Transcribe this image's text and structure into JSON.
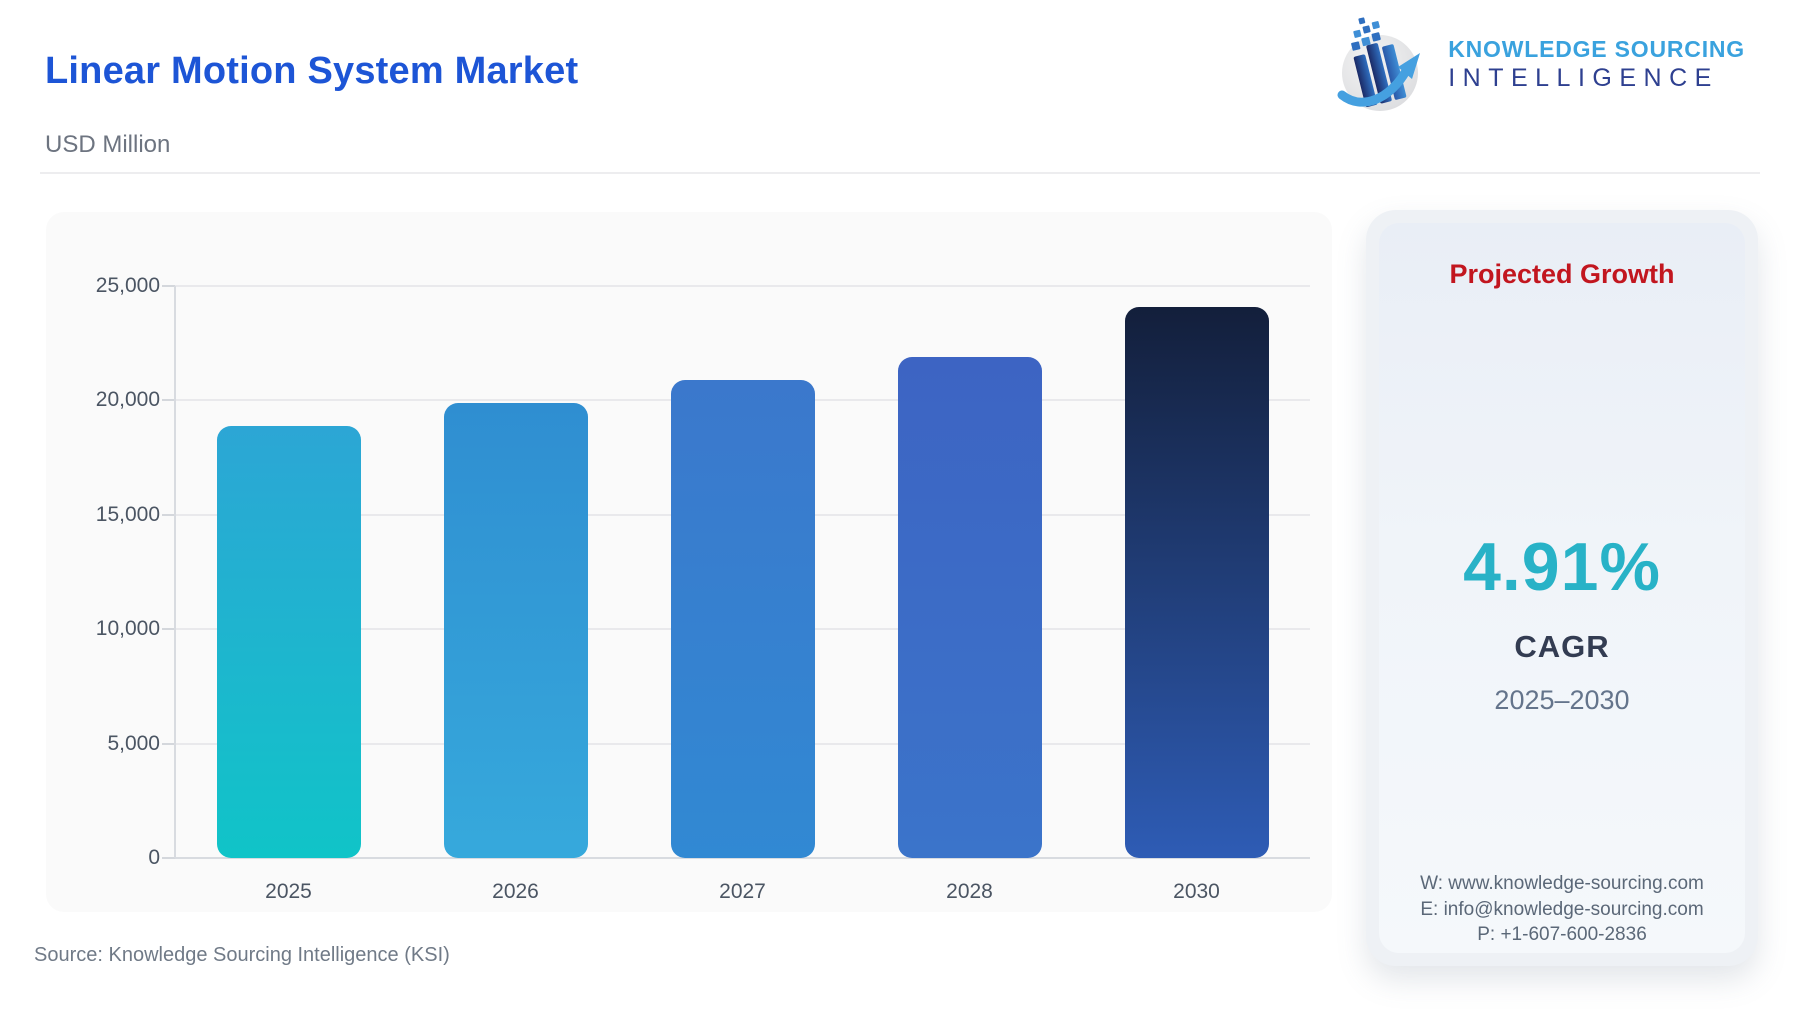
{
  "header": {
    "title": "Linear Motion System Market",
    "subtitle": "USD Million",
    "logo": {
      "line1": "KNOWLEDGE SOURCING",
      "line2": "INTELLIGENCE",
      "icon": "ksi-globe-bars-arrow-icon"
    }
  },
  "chart_data": {
    "type": "bar",
    "title": "Linear Motion System Market",
    "unit_label": "USD Million",
    "categories": [
      "2025",
      "2026",
      "2027",
      "2028",
      "2030"
    ],
    "values": [
      18900,
      19900,
      20900,
      21900,
      24100
    ],
    "ylim": [
      0,
      25000
    ],
    "ytick_values": [
      0,
      5000,
      10000,
      15000,
      20000,
      25000
    ],
    "ytick_labels": [
      "0",
      "5,000",
      "10,000",
      "15,000",
      "20,000",
      "25,000"
    ],
    "grid": true,
    "legend": false,
    "bar_gradients": [
      [
        "#2CA6D5",
        "#10C4C8"
      ],
      [
        "#2F8ED1",
        "#36A9DC"
      ],
      [
        "#3B78CC",
        "#3189D3"
      ],
      [
        "#3D64C3",
        "#3B74CA"
      ],
      [
        "#131F3B",
        "#2E5CB5"
      ]
    ]
  },
  "growth_panel": {
    "heading": "Projected Growth",
    "cagr_value": "4.91%",
    "cagr_label": "CAGR",
    "period": "2025–2030",
    "contact": {
      "website": "W: www.knowledge-sourcing.com",
      "email": "E: info@knowledge-sourcing.com",
      "phone": "P: +1-607-600-2836"
    }
  },
  "footer": {
    "source": "Source: Knowledge Sourcing Intelligence (KSI)"
  },
  "colors": {
    "title_blue": "#1d55d6",
    "heading_red": "#c2161f",
    "cagr_teal": "#28b2c7",
    "logo_light_blue": "#3aa2de",
    "logo_dark_blue": "#2e4090",
    "axis_text": "#4b5563",
    "muted_text": "#64748b",
    "card_bg": "#fafafa",
    "panel_bg": "#edf1f7"
  }
}
